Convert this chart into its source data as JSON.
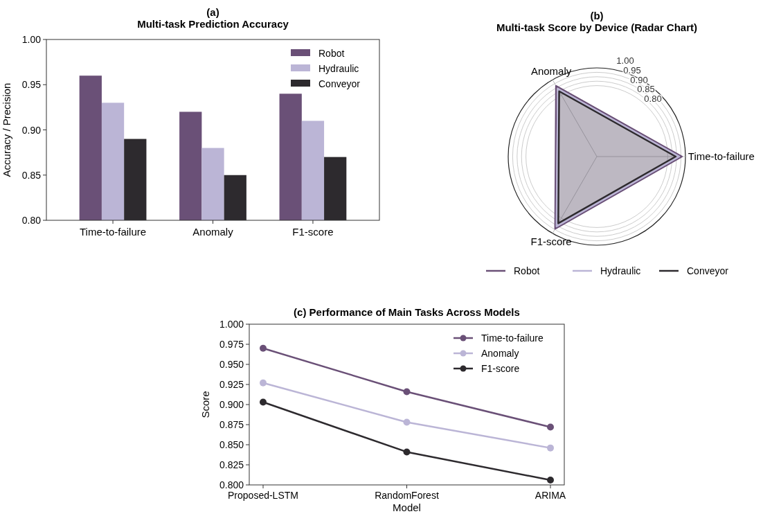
{
  "chart_data": [
    {
      "type": "bar",
      "title": "(a)",
      "subtitle": "Multi-task Prediction Accuracy",
      "ylabel": "Accuracy / Precision",
      "categories": [
        "Time-to-failure",
        "Anomaly",
        "F1-score"
      ],
      "series": [
        {
          "name": "Robot",
          "color": "#6a5077",
          "values": [
            0.96,
            0.92,
            0.94
          ]
        },
        {
          "name": "Hydraulic",
          "color": "#bbb5d6",
          "values": [
            0.93,
            0.88,
            0.91
          ]
        },
        {
          "name": "Conveyor",
          "color": "#2d2a2e",
          "values": [
            0.89,
            0.85,
            0.87
          ]
        }
      ],
      "ylim": [
        0.8,
        1.0
      ],
      "yticks": [
        {
          "value": 0.8,
          "label": "0.80"
        },
        {
          "value": 0.85,
          "label": "0.85"
        },
        {
          "value": 0.9,
          "label": "0.90"
        },
        {
          "value": 0.95,
          "label": "0.95"
        },
        {
          "value": 1.0,
          "label": "1.00"
        }
      ],
      "legend": "top right"
    },
    {
      "type": "radar",
      "title": "(b)",
      "subtitle": "Multi-task Score by Device (Radar Chart)",
      "categories": [
        "Time-to-failure",
        "F1-score",
        "Anomaly"
      ],
      "series": [
        {
          "name": "Robot",
          "color": "#6a5077",
          "values": [
            0.96,
            0.94,
            0.92
          ]
        },
        {
          "name": "Hydraulic",
          "color": "#bbb5d6",
          "values": [
            0.93,
            0.91,
            0.88
          ]
        },
        {
          "name": "Conveyor",
          "color": "#2d2a2e",
          "values": [
            0.89,
            0.87,
            0.85
          ]
        }
      ],
      "ylim": [
        0,
        1.0
      ],
      "yticks": [
        {
          "value": 0.8,
          "label": "0.80"
        },
        {
          "value": 0.85,
          "label": "0.85"
        },
        {
          "value": 0.9,
          "label": "0.90"
        },
        {
          "value": 0.95,
          "label": "0.95"
        },
        {
          "value": 1.0,
          "label": "1.00"
        }
      ],
      "grid": true,
      "legend": "bottom"
    },
    {
      "type": "line",
      "title": "(c) Performance of Main Tasks Across Models",
      "xlabel": "Model",
      "ylabel": "Score",
      "categories": [
        "Proposed-LSTM",
        "RandomForest",
        "ARIMA"
      ],
      "series": [
        {
          "name": "Time-to-failure",
          "color": "#6a5077",
          "values": [
            0.97,
            0.916,
            0.872
          ]
        },
        {
          "name": "Anomaly",
          "color": "#bbb5d6",
          "values": [
            0.927,
            0.878,
            0.846
          ]
        },
        {
          "name": "F1-score",
          "color": "#2d2a2e",
          "values": [
            0.903,
            0.841,
            0.806
          ]
        }
      ],
      "ylim": [
        0.8,
        1.0
      ],
      "yticks": [
        {
          "value": 0.8,
          "label": "0.800"
        },
        {
          "value": 0.825,
          "label": "0.825"
        },
        {
          "value": 0.85,
          "label": "0.850"
        },
        {
          "value": 0.875,
          "label": "0.875"
        },
        {
          "value": 0.9,
          "label": "0.900"
        },
        {
          "value": 0.925,
          "label": "0.925"
        },
        {
          "value": 0.95,
          "label": "0.950"
        },
        {
          "value": 0.975,
          "label": "0.975"
        },
        {
          "value": 1.0,
          "label": "1.000"
        }
      ],
      "legend": "top right",
      "marker": "circle"
    }
  ]
}
